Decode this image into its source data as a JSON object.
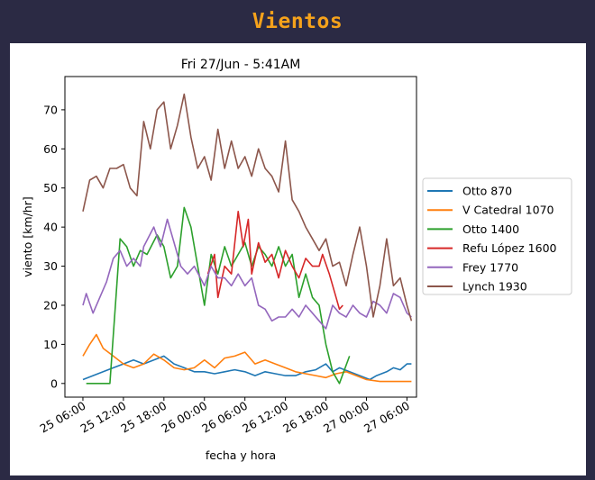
{
  "page": {
    "title": "Vientos"
  },
  "chart_data": {
    "type": "line",
    "title": "Fri 27/Jun - 5:41AM",
    "xlabel": "fecha y hora",
    "ylabel": "viento [km/hr]",
    "xlim": [
      "2025-06-25 03:20",
      "2025-06-27 07:25"
    ],
    "ylim": [
      -3.5,
      78.5
    ],
    "yticks": [
      0,
      10,
      20,
      30,
      40,
      50,
      60,
      70
    ],
    "xticks": [
      {
        "t": "2025-06-25 06:00",
        "label": "25 06:00"
      },
      {
        "t": "2025-06-25 12:00",
        "label": "25 12:00"
      },
      {
        "t": "2025-06-25 18:00",
        "label": "25 18:00"
      },
      {
        "t": "2025-06-26 00:00",
        "label": "26 00:00"
      },
      {
        "t": "2025-06-26 06:00",
        "label": "26 06:00"
      },
      {
        "t": "2025-06-26 12:00",
        "label": "26 12:00"
      },
      {
        "t": "2025-06-26 18:00",
        "label": "26 18:00"
      },
      {
        "t": "2025-06-27 00:00",
        "label": "27 00:00"
      },
      {
        "t": "2025-06-27 06:00",
        "label": "27 06:00"
      }
    ],
    "grid": false,
    "legend_position": "right",
    "series": [
      {
        "name": "Otto 870",
        "color": "#1f77b4",
        "points": [
          [
            "2025-06-25 06:00",
            1
          ],
          [
            "2025-06-25 07:30",
            2
          ],
          [
            "2025-06-25 09:00",
            3
          ],
          [
            "2025-06-25 10:30",
            4
          ],
          [
            "2025-06-25 12:00",
            5
          ],
          [
            "2025-06-25 13:30",
            6
          ],
          [
            "2025-06-25 15:00",
            5
          ],
          [
            "2025-06-25 16:30",
            6
          ],
          [
            "2025-06-25 18:00",
            7
          ],
          [
            "2025-06-25 19:30",
            5
          ],
          [
            "2025-06-25 21:00",
            4
          ],
          [
            "2025-06-25 22:30",
            3
          ],
          [
            "2025-06-26 00:00",
            3
          ],
          [
            "2025-06-26 01:30",
            2.5
          ],
          [
            "2025-06-26 03:00",
            3
          ],
          [
            "2025-06-26 04:30",
            3.5
          ],
          [
            "2025-06-26 06:00",
            3
          ],
          [
            "2025-06-26 07:30",
            2
          ],
          [
            "2025-06-26 09:00",
            3
          ],
          [
            "2025-06-26 10:30",
            2.5
          ],
          [
            "2025-06-26 12:00",
            2
          ],
          [
            "2025-06-26 13:30",
            2
          ],
          [
            "2025-06-26 15:00",
            3
          ],
          [
            "2025-06-26 16:30",
            3.5
          ],
          [
            "2025-06-26 18:00",
            5
          ],
          [
            "2025-06-26 19:00",
            3
          ],
          [
            "2025-06-26 20:00",
            4
          ],
          [
            "2025-06-26 21:30",
            3
          ],
          [
            "2025-06-26 23:00",
            2
          ],
          [
            "2025-06-27 00:30",
            1
          ],
          [
            "2025-06-27 01:30",
            2
          ],
          [
            "2025-06-27 03:00",
            3
          ],
          [
            "2025-06-27 04:00",
            4
          ],
          [
            "2025-06-27 05:00",
            3.5
          ],
          [
            "2025-06-27 06:00",
            5
          ],
          [
            "2025-06-27 06:40",
            5
          ]
        ]
      },
      {
        "name": "V Catedral 1070",
        "color": "#ff7f0e",
        "points": [
          [
            "2025-06-25 06:00",
            7
          ],
          [
            "2025-06-25 07:00",
            10
          ],
          [
            "2025-06-25 08:00",
            12.5
          ],
          [
            "2025-06-25 09:00",
            9
          ],
          [
            "2025-06-25 10:30",
            7
          ],
          [
            "2025-06-25 12:00",
            5
          ],
          [
            "2025-06-25 13:30",
            4
          ],
          [
            "2025-06-25 15:00",
            5
          ],
          [
            "2025-06-25 16:30",
            7.5
          ],
          [
            "2025-06-25 18:00",
            6
          ],
          [
            "2025-06-25 19:30",
            4
          ],
          [
            "2025-06-25 21:00",
            3.5
          ],
          [
            "2025-06-25 22:30",
            4
          ],
          [
            "2025-06-26 00:00",
            6
          ],
          [
            "2025-06-26 01:30",
            4
          ],
          [
            "2025-06-26 03:00",
            6.5
          ],
          [
            "2025-06-26 04:30",
            7
          ],
          [
            "2025-06-26 06:00",
            8
          ],
          [
            "2025-06-26 07:30",
            5
          ],
          [
            "2025-06-26 09:00",
            6
          ],
          [
            "2025-06-26 10:30",
            5
          ],
          [
            "2025-06-26 12:00",
            4
          ],
          [
            "2025-06-26 13:30",
            3
          ],
          [
            "2025-06-26 15:00",
            2.5
          ],
          [
            "2025-06-26 16:30",
            2
          ],
          [
            "2025-06-26 18:00",
            1.5
          ],
          [
            "2025-06-26 19:30",
            2.5
          ],
          [
            "2025-06-26 21:00",
            3
          ],
          [
            "2025-06-26 22:30",
            2
          ],
          [
            "2025-06-27 00:00",
            1
          ],
          [
            "2025-06-27 02:00",
            0.5
          ],
          [
            "2025-06-27 04:00",
            0.5
          ],
          [
            "2025-06-27 05:30",
            0.5
          ],
          [
            "2025-06-27 06:40",
            0.5
          ]
        ]
      },
      {
        "name": "Otto 1400",
        "color": "#2ca02c",
        "points": [
          [
            "2025-06-25 06:30",
            0
          ],
          [
            "2025-06-25 09:00",
            0
          ],
          [
            "2025-06-25 10:00",
            0
          ],
          [
            "2025-06-25 11:30",
            37
          ],
          [
            "2025-06-25 12:30",
            35
          ],
          [
            "2025-06-25 13:30",
            30
          ],
          [
            "2025-06-25 14:30",
            34
          ],
          [
            "2025-06-25 15:30",
            33
          ],
          [
            "2025-06-25 17:00",
            38
          ],
          [
            "2025-06-25 18:00",
            35
          ],
          [
            "2025-06-25 19:00",
            27
          ],
          [
            "2025-06-25 20:00",
            30
          ],
          [
            "2025-06-25 21:00",
            45
          ],
          [
            "2025-06-25 22:00",
            40
          ],
          [
            "2025-06-25 23:00",
            30
          ],
          [
            "2025-06-26 00:00",
            20
          ],
          [
            "2025-06-26 01:00",
            33
          ],
          [
            "2025-06-26 02:00",
            28
          ],
          [
            "2025-06-26 03:00",
            35
          ],
          [
            "2025-06-26 04:00",
            30
          ],
          [
            "2025-06-26 05:00",
            33
          ],
          [
            "2025-06-26 06:00",
            36
          ],
          [
            "2025-06-26 07:00",
            30
          ],
          [
            "2025-06-26 08:00",
            35
          ],
          [
            "2025-06-26 09:00",
            33
          ],
          [
            "2025-06-26 10:00",
            30
          ],
          [
            "2025-06-26 11:00",
            35
          ],
          [
            "2025-06-26 12:00",
            30
          ],
          [
            "2025-06-26 13:00",
            33
          ],
          [
            "2025-06-26 14:00",
            22
          ],
          [
            "2025-06-26 15:00",
            28
          ],
          [
            "2025-06-26 16:00",
            22
          ],
          [
            "2025-06-26 17:00",
            20
          ],
          [
            "2025-06-26 18:00",
            10
          ],
          [
            "2025-06-26 19:00",
            3
          ],
          [
            "2025-06-26 20:00",
            0
          ],
          [
            "2025-06-26 21:30",
            7
          ]
        ]
      },
      {
        "name": "Refu López 1600",
        "color": "#d62728",
        "points": [
          [
            "2025-06-26 00:30",
            28
          ],
          [
            "2025-06-26 01:30",
            33
          ],
          [
            "2025-06-26 02:00",
            22
          ],
          [
            "2025-06-26 03:00",
            30
          ],
          [
            "2025-06-26 04:00",
            28
          ],
          [
            "2025-06-26 05:00",
            44
          ],
          [
            "2025-06-26 05:45",
            35
          ],
          [
            "2025-06-26 06:30",
            42
          ],
          [
            "2025-06-26 07:00",
            28
          ],
          [
            "2025-06-26 08:00",
            36
          ],
          [
            "2025-06-26 09:00",
            31
          ],
          [
            "2025-06-26 10:00",
            33
          ],
          [
            "2025-06-26 11:00",
            27
          ],
          [
            "2025-06-26 12:00",
            34
          ],
          [
            "2025-06-26 13:00",
            30
          ],
          [
            "2025-06-26 14:00",
            27
          ],
          [
            "2025-06-26 15:00",
            32
          ],
          [
            "2025-06-26 16:00",
            30
          ],
          [
            "2025-06-26 17:00",
            30
          ],
          [
            "2025-06-26 17:30",
            33
          ],
          [
            "2025-06-26 18:30",
            28
          ],
          [
            "2025-06-26 19:30",
            22
          ],
          [
            "2025-06-26 20:00",
            19
          ],
          [
            "2025-06-26 20:30",
            20
          ]
        ]
      },
      {
        "name": "Frey 1770",
        "color": "#9467bd",
        "points": [
          [
            "2025-06-25 06:00",
            20
          ],
          [
            "2025-06-25 06:30",
            23
          ],
          [
            "2025-06-25 07:30",
            18
          ],
          [
            "2025-06-25 08:30",
            22
          ],
          [
            "2025-06-25 09:30",
            26
          ],
          [
            "2025-06-25 10:30",
            32
          ],
          [
            "2025-06-25 11:30",
            34
          ],
          [
            "2025-06-25 12:30",
            30
          ],
          [
            "2025-06-25 13:30",
            32
          ],
          [
            "2025-06-25 14:30",
            30
          ],
          [
            "2025-06-25 15:00",
            35
          ],
          [
            "2025-06-25 16:30",
            40
          ],
          [
            "2025-06-25 17:30",
            35
          ],
          [
            "2025-06-25 18:30",
            42
          ],
          [
            "2025-06-25 19:30",
            36
          ],
          [
            "2025-06-25 20:30",
            30
          ],
          [
            "2025-06-25 21:30",
            28
          ],
          [
            "2025-06-25 22:30",
            30
          ],
          [
            "2025-06-26 00:00",
            25
          ],
          [
            "2025-06-26 01:00",
            30
          ],
          [
            "2025-06-26 02:00",
            27
          ],
          [
            "2025-06-26 03:00",
            27
          ],
          [
            "2025-06-26 04:00",
            25
          ],
          [
            "2025-06-26 05:00",
            28
          ],
          [
            "2025-06-26 06:00",
            25
          ],
          [
            "2025-06-26 07:00",
            27
          ],
          [
            "2025-06-26 08:00",
            20
          ],
          [
            "2025-06-26 09:00",
            19
          ],
          [
            "2025-06-26 10:00",
            16
          ],
          [
            "2025-06-26 11:00",
            17
          ],
          [
            "2025-06-26 12:00",
            17
          ],
          [
            "2025-06-26 13:00",
            19
          ],
          [
            "2025-06-26 14:00",
            17
          ],
          [
            "2025-06-26 15:00",
            20
          ],
          [
            "2025-06-26 16:00",
            18
          ],
          [
            "2025-06-26 17:00",
            16
          ],
          [
            "2025-06-26 18:00",
            14
          ],
          [
            "2025-06-26 19:00",
            20
          ],
          [
            "2025-06-26 20:00",
            18
          ],
          [
            "2025-06-26 21:00",
            17
          ],
          [
            "2025-06-26 22:00",
            20
          ],
          [
            "2025-06-26 23:00",
            18
          ],
          [
            "2025-06-27 00:00",
            17
          ],
          [
            "2025-06-27 01:00",
            21
          ],
          [
            "2025-06-27 02:00",
            20
          ],
          [
            "2025-06-27 03:00",
            18
          ],
          [
            "2025-06-27 04:00",
            23
          ],
          [
            "2025-06-27 05:00",
            22
          ],
          [
            "2025-06-27 06:00",
            18
          ],
          [
            "2025-06-27 06:40",
            17
          ]
        ]
      },
      {
        "name": "Lynch 1930",
        "color": "#8c564b",
        "points": [
          [
            "2025-06-25 06:00",
            44
          ],
          [
            "2025-06-25 07:00",
            52
          ],
          [
            "2025-06-25 08:00",
            53
          ],
          [
            "2025-06-25 09:00",
            50
          ],
          [
            "2025-06-25 10:00",
            55
          ],
          [
            "2025-06-25 11:00",
            55
          ],
          [
            "2025-06-25 12:00",
            56
          ],
          [
            "2025-06-25 13:00",
            50
          ],
          [
            "2025-06-25 14:00",
            48
          ],
          [
            "2025-06-25 15:00",
            67
          ],
          [
            "2025-06-25 16:00",
            60
          ],
          [
            "2025-06-25 17:00",
            70
          ],
          [
            "2025-06-25 18:00",
            72
          ],
          [
            "2025-06-25 19:00",
            60
          ],
          [
            "2025-06-25 20:00",
            66
          ],
          [
            "2025-06-25 21:00",
            74
          ],
          [
            "2025-06-25 22:00",
            63
          ],
          [
            "2025-06-25 23:00",
            55
          ],
          [
            "2025-06-26 00:00",
            58
          ],
          [
            "2025-06-26 01:00",
            52
          ],
          [
            "2025-06-26 02:00",
            65
          ],
          [
            "2025-06-26 03:00",
            55
          ],
          [
            "2025-06-26 04:00",
            62
          ],
          [
            "2025-06-26 05:00",
            55
          ],
          [
            "2025-06-26 06:00",
            58
          ],
          [
            "2025-06-26 07:00",
            53
          ],
          [
            "2025-06-26 08:00",
            60
          ],
          [
            "2025-06-26 09:00",
            55
          ],
          [
            "2025-06-26 10:00",
            53
          ],
          [
            "2025-06-26 11:00",
            49
          ],
          [
            "2025-06-26 12:00",
            62
          ],
          [
            "2025-06-26 13:00",
            47
          ],
          [
            "2025-06-26 14:00",
            44
          ],
          [
            "2025-06-26 15:00",
            40
          ],
          [
            "2025-06-26 16:00",
            37
          ],
          [
            "2025-06-26 17:00",
            34
          ],
          [
            "2025-06-26 18:00",
            37
          ],
          [
            "2025-06-26 19:00",
            30
          ],
          [
            "2025-06-26 20:00",
            31
          ],
          [
            "2025-06-26 21:00",
            25
          ],
          [
            "2025-06-26 22:00",
            33
          ],
          [
            "2025-06-26 23:00",
            40
          ],
          [
            "2025-06-27 00:00",
            30
          ],
          [
            "2025-06-27 01:00",
            17
          ],
          [
            "2025-06-27 02:00",
            25
          ],
          [
            "2025-06-27 03:00",
            37
          ],
          [
            "2025-06-27 04:00",
            25
          ],
          [
            "2025-06-27 05:00",
            27
          ],
          [
            "2025-06-27 06:00",
            20
          ],
          [
            "2025-06-27 06:40",
            16
          ]
        ]
      }
    ]
  }
}
